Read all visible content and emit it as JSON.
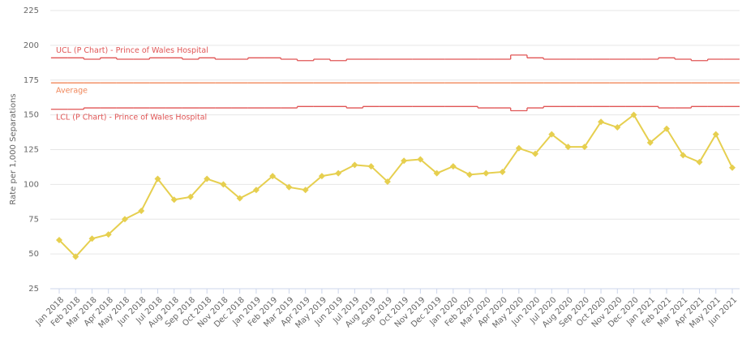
{
  "chart_data": {
    "type": "line",
    "y_axis_label": "Rate per 1,000 Separations",
    "categories": [
      "Jan 2018",
      "Feb 2018",
      "Mar 2018",
      "Apr 2018",
      "May 2018",
      "Jun 2018",
      "Jul 2018",
      "Aug 2018",
      "Sep 2018",
      "Oct 2018",
      "Nov 2018",
      "Dec 2018",
      "Jan 2019",
      "Feb 2019",
      "Mar 2019",
      "Apr 2019",
      "May 2019",
      "Jun 2019",
      "Jul 2019",
      "Aug 2019",
      "Sep 2019",
      "Oct 2019",
      "Nov 2019",
      "Dec 2019",
      "Jan 2020",
      "Feb 2020",
      "Mar 2020",
      "Apr 2020",
      "May 2020",
      "Jun 2020",
      "Jul 2020",
      "Aug 2020",
      "Sep 2020",
      "Oct 2020",
      "Nov 2020",
      "Dec 2020",
      "Jan 2021",
      "Feb 2021",
      "Mar 2021",
      "Apr 2021",
      "May 2021",
      "Jun 2021"
    ],
    "ylim": [
      25,
      225
    ],
    "yticks": [
      25,
      50,
      75,
      100,
      125,
      150,
      175,
      200,
      225
    ],
    "grid": true,
    "series": [
      {
        "name": "UCL (P Chart) - Prince of Wales Hospital",
        "color": "#e05555",
        "step": true,
        "values": [
          191,
          191,
          190,
          191,
          190,
          190,
          191,
          191,
          190,
          191,
          190,
          190,
          191,
          191,
          190,
          189,
          190,
          189,
          190,
          190,
          190,
          190,
          190,
          190,
          190,
          190,
          190,
          190,
          193,
          191,
          190,
          190,
          190,
          190,
          190,
          190,
          190,
          191,
          190,
          189,
          190,
          190
        ]
      },
      {
        "name": "Average",
        "color": "#f0875a",
        "step": true,
        "values": [
          173,
          173,
          173,
          173,
          173,
          173,
          173,
          173,
          173,
          173,
          173,
          173,
          173,
          173,
          173,
          173,
          173,
          173,
          173,
          173,
          173,
          173,
          173,
          173,
          173,
          173,
          173,
          173,
          173,
          173,
          173,
          173,
          173,
          173,
          173,
          173,
          173,
          173,
          173,
          173,
          173,
          173
        ]
      },
      {
        "name": "LCL (P Chart) - Prince of Wales Hospital",
        "color": "#e05555",
        "step": true,
        "values": [
          154,
          154,
          155,
          155,
          155,
          155,
          155,
          155,
          155,
          155,
          155,
          155,
          155,
          155,
          155,
          156,
          156,
          156,
          155,
          156,
          156,
          156,
          156,
          156,
          156,
          156,
          155,
          155,
          153,
          155,
          156,
          156,
          156,
          156,
          156,
          156,
          156,
          155,
          155,
          156,
          156,
          156
        ]
      },
      {
        "color": "#e6cf4f",
        "step": false,
        "values": [
          60,
          48,
          61,
          64,
          75,
          81,
          104,
          89,
          91,
          104,
          100,
          90,
          96,
          106,
          98,
          96,
          106,
          108,
          114,
          113,
          102,
          117,
          118,
          108,
          113,
          107,
          108,
          109,
          126,
          122,
          136,
          127,
          127,
          145,
          141,
          150,
          130,
          140,
          121,
          116,
          136,
          112
        ]
      }
    ]
  }
}
